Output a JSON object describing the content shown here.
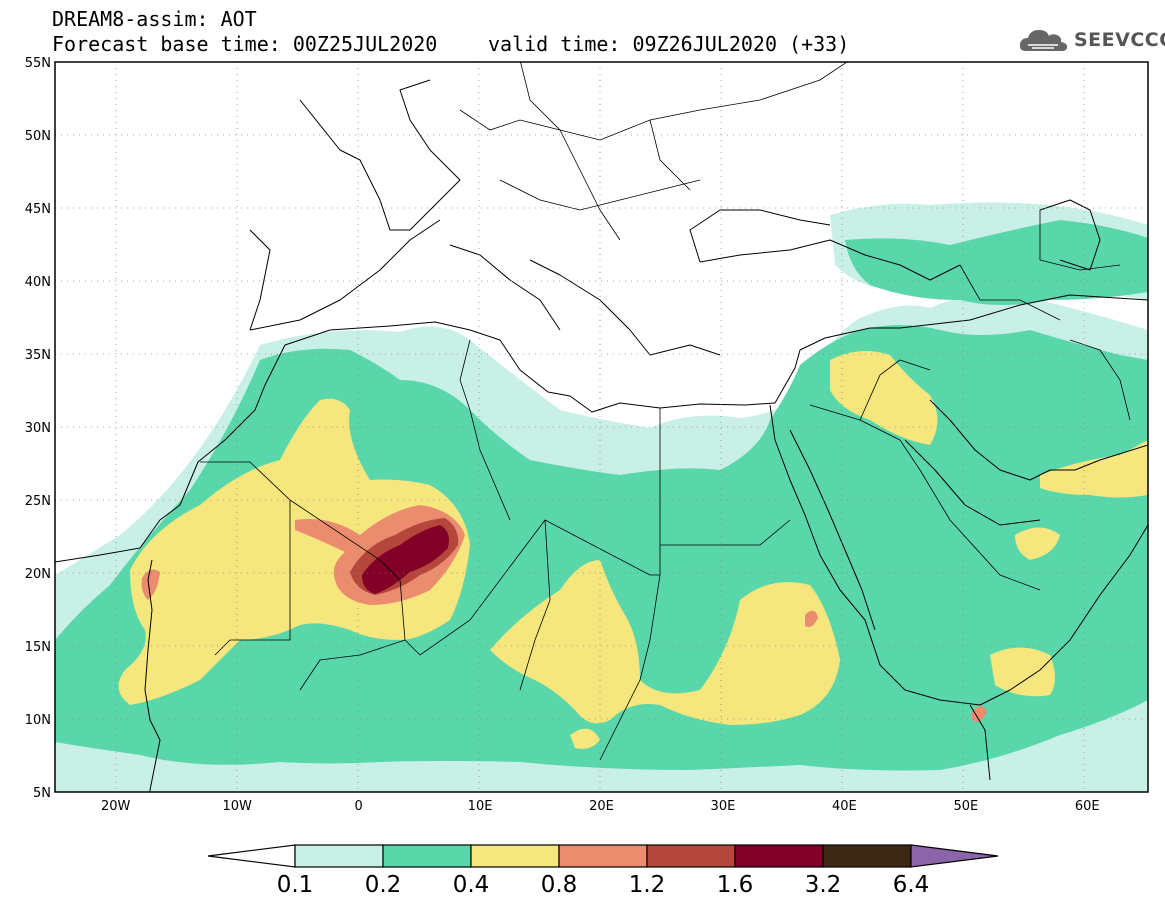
{
  "header": {
    "line1": "DREAM8-assim: AOT",
    "line2_left": "Forecast base time: 00Z25JUL2020",
    "line2_right": "valid time: 09Z26JUL2020 (+33)"
  },
  "logo": {
    "text": "SEEVCCC",
    "icon": "cloud-icon"
  },
  "map": {
    "variable": "AOT",
    "lon_range": [
      -25,
      65
    ],
    "lat_range": [
      5,
      55
    ],
    "lon_ticks": [
      "20W",
      "10W",
      "0",
      "10E",
      "20E",
      "30E",
      "40E",
      "50E",
      "60E"
    ],
    "lat_ticks": [
      "55N",
      "50N",
      "45N",
      "40N",
      "35N",
      "30N",
      "25N",
      "20N",
      "15N",
      "10N",
      "5N"
    ],
    "grid": "dotted"
  },
  "colorbar": {
    "labels": [
      "0.1",
      "0.2",
      "0.4",
      "0.8",
      "1.2",
      "1.6",
      "3.2",
      "6.4"
    ],
    "colors": [
      "#ffffff",
      "#c8f0e6",
      "#5ad7aa",
      "#f5e67d",
      "#eb8c6e",
      "#b4463c",
      "#820028",
      "#3c2814",
      "#8c64aa"
    ]
  }
}
